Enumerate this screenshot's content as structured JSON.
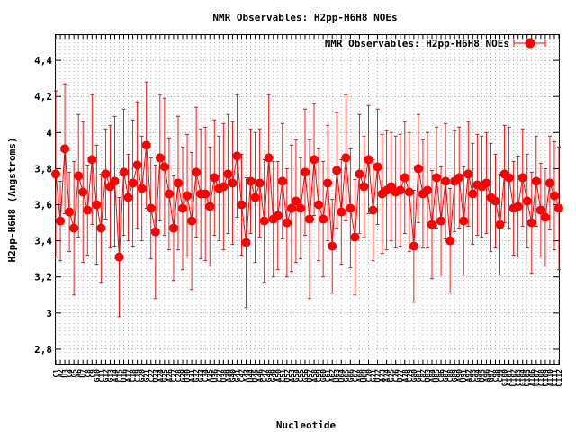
{
  "chart_data": {
    "type": "line",
    "title": "NMR Observables: H2pp-H6H8 NOEs",
    "xlabel": "Nucleotide",
    "ylabel": "H2pp-H6H8 (Angstroms)",
    "ylim": [
      2.72,
      4.54
    ],
    "yticks": [
      2.8,
      3,
      3.2,
      3.4,
      3.6,
      3.8,
      4,
      4.2,
      4.4
    ],
    "ytick_labels": [
      "2,8",
      "3",
      "3,2",
      "3,4",
      "3,6",
      "3,8",
      "4",
      "4,2",
      "4,4"
    ],
    "grid": true,
    "legend_position": "top-right",
    "series": [
      {
        "name": "NMR Observables: H2pp-H6H8 NOEs",
        "color": "#ff0000",
        "marker": "circle",
        "x": [
          1,
          2,
          3,
          4,
          5,
          6,
          7,
          8,
          9,
          10,
          11,
          12,
          13,
          14,
          15,
          16,
          17,
          18,
          19,
          20,
          21,
          22,
          23,
          24,
          25,
          26,
          27,
          28,
          29,
          30,
          31,
          32,
          33,
          34,
          35,
          36,
          37,
          38,
          39,
          40,
          41,
          42,
          43,
          44,
          45,
          46,
          47,
          48,
          49,
          50,
          51,
          52,
          53,
          54,
          55,
          56,
          57,
          58,
          59,
          60,
          61,
          62,
          63,
          64,
          65,
          66,
          67,
          68,
          69,
          70,
          71,
          72,
          73,
          74,
          75,
          76,
          77,
          78,
          79,
          80,
          81,
          82,
          83,
          84,
          85,
          86,
          87,
          88,
          89,
          90,
          91,
          92,
          93,
          94,
          95,
          96,
          97,
          98,
          99,
          100,
          101,
          102,
          103,
          104,
          105,
          106,
          107,
          108,
          109,
          110,
          111,
          112
        ],
        "values": [
          3.77,
          3.51,
          3.91,
          3.56,
          3.47,
          3.76,
          3.67,
          3.57,
          3.85,
          3.6,
          3.47,
          3.77,
          3.7,
          3.73,
          3.31,
          3.78,
          3.64,
          3.72,
          3.82,
          3.69,
          3.93,
          3.58,
          3.45,
          3.86,
          3.81,
          3.66,
          3.47,
          3.72,
          3.58,
          3.65,
          3.51,
          3.78,
          3.66,
          3.66,
          3.59,
          3.75,
          3.69,
          3.7,
          3.77,
          3.72,
          3.87,
          3.6,
          3.39,
          3.73,
          3.64,
          3.72,
          3.51,
          3.86,
          3.52,
          3.54,
          3.73,
          3.5,
          3.58,
          3.62,
          3.58,
          3.78,
          3.52,
          3.85,
          3.6,
          3.52,
          3.72,
          3.37,
          3.79,
          3.56,
          3.86,
          3.58,
          3.42,
          3.77,
          3.7,
          3.85,
          3.57,
          3.81,
          3.66,
          3.68,
          3.7,
          3.67,
          3.68,
          3.75,
          3.67,
          3.37,
          3.8,
          3.66,
          3.68,
          3.49,
          3.75,
          3.51,
          3.73,
          3.4,
          3.73,
          3.75,
          3.51,
          3.77,
          3.66,
          3.71,
          3.7,
          3.72,
          3.64,
          3.62,
          3.49,
          3.77,
          3.75,
          3.58,
          3.59,
          3.75,
          3.62,
          3.5,
          3.73,
          3.57,
          3.53,
          3.72,
          3.65,
          3.58
        ],
        "errors": [
          0.46,
          0.22,
          0.36,
          0.22,
          0.37,
          0.34,
          0.39,
          0.25,
          0.36,
          0.33,
          0.3,
          0.25,
          0.34,
          0.36,
          0.33,
          0.35,
          0.24,
          0.35,
          0.35,
          0.29,
          0.35,
          0.28,
          0.37,
          0.35,
          0.38,
          0.31,
          0.29,
          0.37,
          0.34,
          0.34,
          0.38,
          0.36,
          0.36,
          0.37,
          0.33,
          0.32,
          0.29,
          0.35,
          0.33,
          0.34,
          0.34,
          0.28,
          0.36,
          0.29,
          0.36,
          0.3,
          0.34,
          0.35,
          0.32,
          0.3,
          0.32,
          0.3,
          0.35,
          0.34,
          0.28,
          0.35,
          0.44,
          0.31,
          0.31,
          0.32,
          0.32,
          0.26,
          0.32,
          0.29,
          0.35,
          0.33,
          0.32,
          0.33,
          0.28,
          0.3,
          0.28,
          0.32,
          0.33,
          0.33,
          0.3,
          0.31,
          0.31,
          0.31,
          0.33,
          0.31,
          0.3,
          0.3,
          0.32,
          0.3,
          0.28,
          0.3,
          0.32,
          0.29,
          0.28,
          0.28,
          0.3,
          0.29,
          0.28,
          0.28,
          0.28,
          0.28,
          0.3,
          0.26,
          0.28,
          0.27,
          0.28,
          0.26,
          0.28,
          0.27,
          0.26,
          0.28,
          0.25,
          0.26,
          0.27,
          0.26,
          0.3,
          0.34
        ]
      }
    ],
    "xtick_labels": [
      "C1",
      "A2",
      "U3",
      "C4",
      "G5",
      "A6",
      "U7",
      "C8",
      "C9",
      "G10",
      "C11",
      "G12",
      "G13",
      "A14",
      "C15",
      "U16",
      "A17",
      "C18",
      "C19",
      "G20",
      "G21",
      "C22",
      "U23",
      "A24",
      "G25",
      "A26",
      "C27",
      "C28",
      "G29",
      "U30",
      "A31",
      "G32",
      "G33",
      "C34",
      "A35",
      "U36",
      "C37",
      "U38",
      "A39",
      "G40",
      "G41",
      "C42",
      "A43",
      "U44",
      "U45",
      "A46",
      "C47",
      "G48",
      "G49",
      "A50",
      "C51",
      "U52",
      "A53",
      "G54",
      "C55",
      "G56",
      "U57",
      "A58",
      "C59",
      "G60",
      "C61",
      "A62",
      "U63",
      "U64",
      "G65",
      "G66",
      "C67",
      "A68",
      "U69",
      "C70",
      "G71",
      "U72",
      "A73",
      "A74",
      "G75",
      "C76",
      "U77",
      "A78",
      "C79",
      "G80",
      "G81",
      "C82",
      "U83",
      "A84",
      "U85",
      "C86",
      "G87",
      "C88",
      "G89",
      "A90",
      "U91",
      "A92",
      "C93",
      "G94",
      "U95",
      "A96",
      "G97",
      "C98",
      "C99",
      "G100",
      "A101",
      "U102",
      "C103",
      "G104",
      "U105",
      "A106",
      "G107",
      "C108",
      "U109",
      "A110",
      "C111",
      "U112"
    ]
  }
}
